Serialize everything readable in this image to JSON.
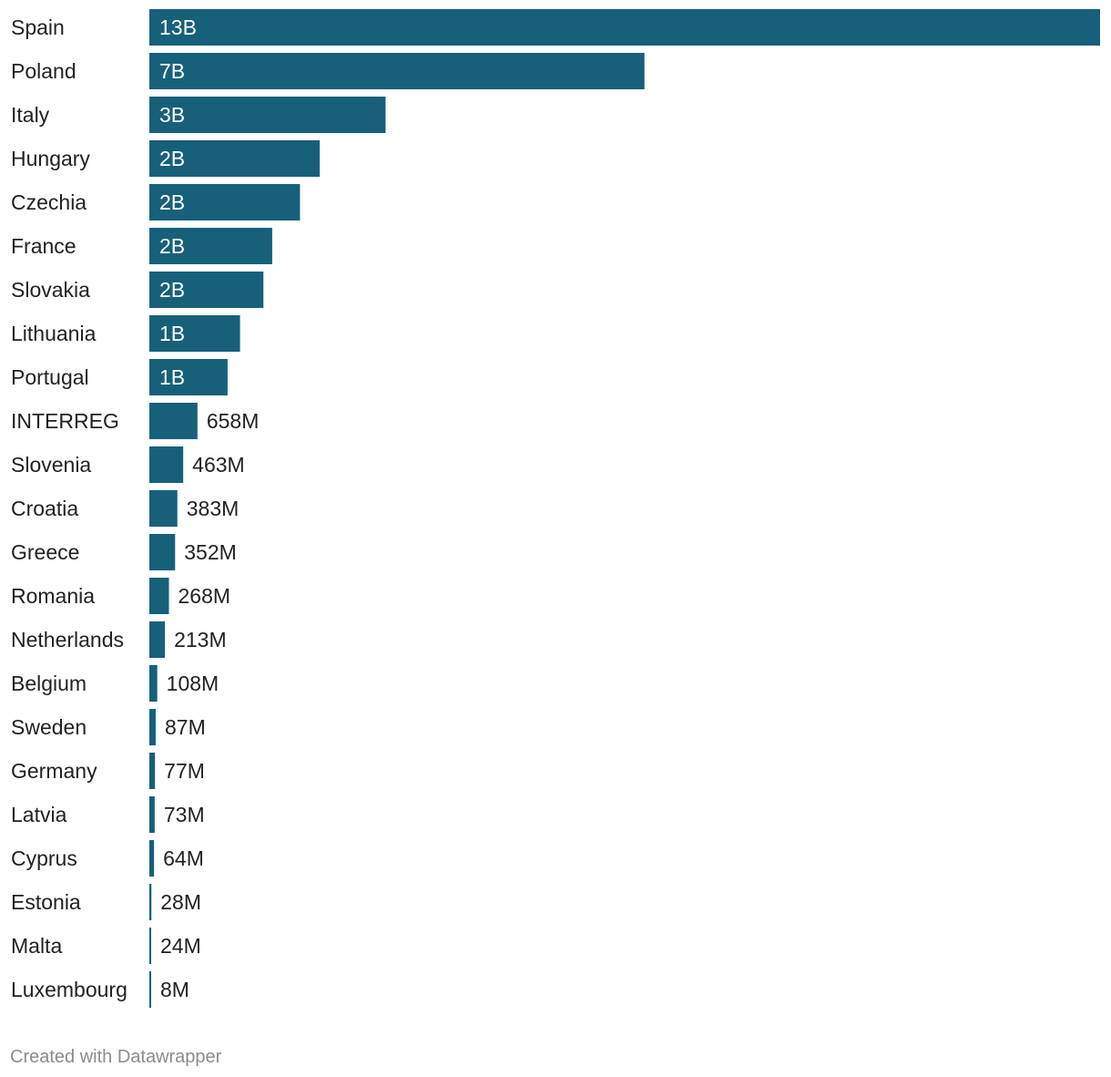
{
  "chart_data": {
    "type": "bar",
    "orientation": "horizontal",
    "categories": [
      "Spain",
      "Poland",
      "Italy",
      "Hungary",
      "Czechia",
      "France",
      "Slovakia",
      "Lithuania",
      "Portugal",
      "INTERREG",
      "Slovenia",
      "Croatia",
      "Greece",
      "Romania",
      "Netherlands",
      "Belgium",
      "Sweden",
      "Germany",
      "Latvia",
      "Cyprus",
      "Estonia",
      "Malta",
      "Luxembourg"
    ],
    "values": [
      13000,
      6770,
      3230,
      2330,
      2060,
      1680,
      1560,
      1240,
      1070,
      658,
      463,
      383,
      352,
      268,
      213,
      108,
      87,
      77,
      73,
      64,
      28,
      24,
      8
    ],
    "value_unit": "M",
    "data_labels": [
      "13B",
      "7B",
      "3B",
      "2B",
      "2B",
      "2B",
      "2B",
      "1B",
      "1B",
      "658M",
      "463M",
      "383M",
      "352M",
      "268M",
      "213M",
      "108M",
      "87M",
      "77M",
      "73M",
      "64M",
      "28M",
      "24M",
      "8M"
    ],
    "xlim": [
      0,
      13000
    ],
    "grid": false,
    "legend": "none",
    "bar_color": "#17607a",
    "inside_label_color": "#ffffff",
    "outside_label_color": "#222222"
  },
  "footer": {
    "credit": "Created with Datawrapper"
  }
}
